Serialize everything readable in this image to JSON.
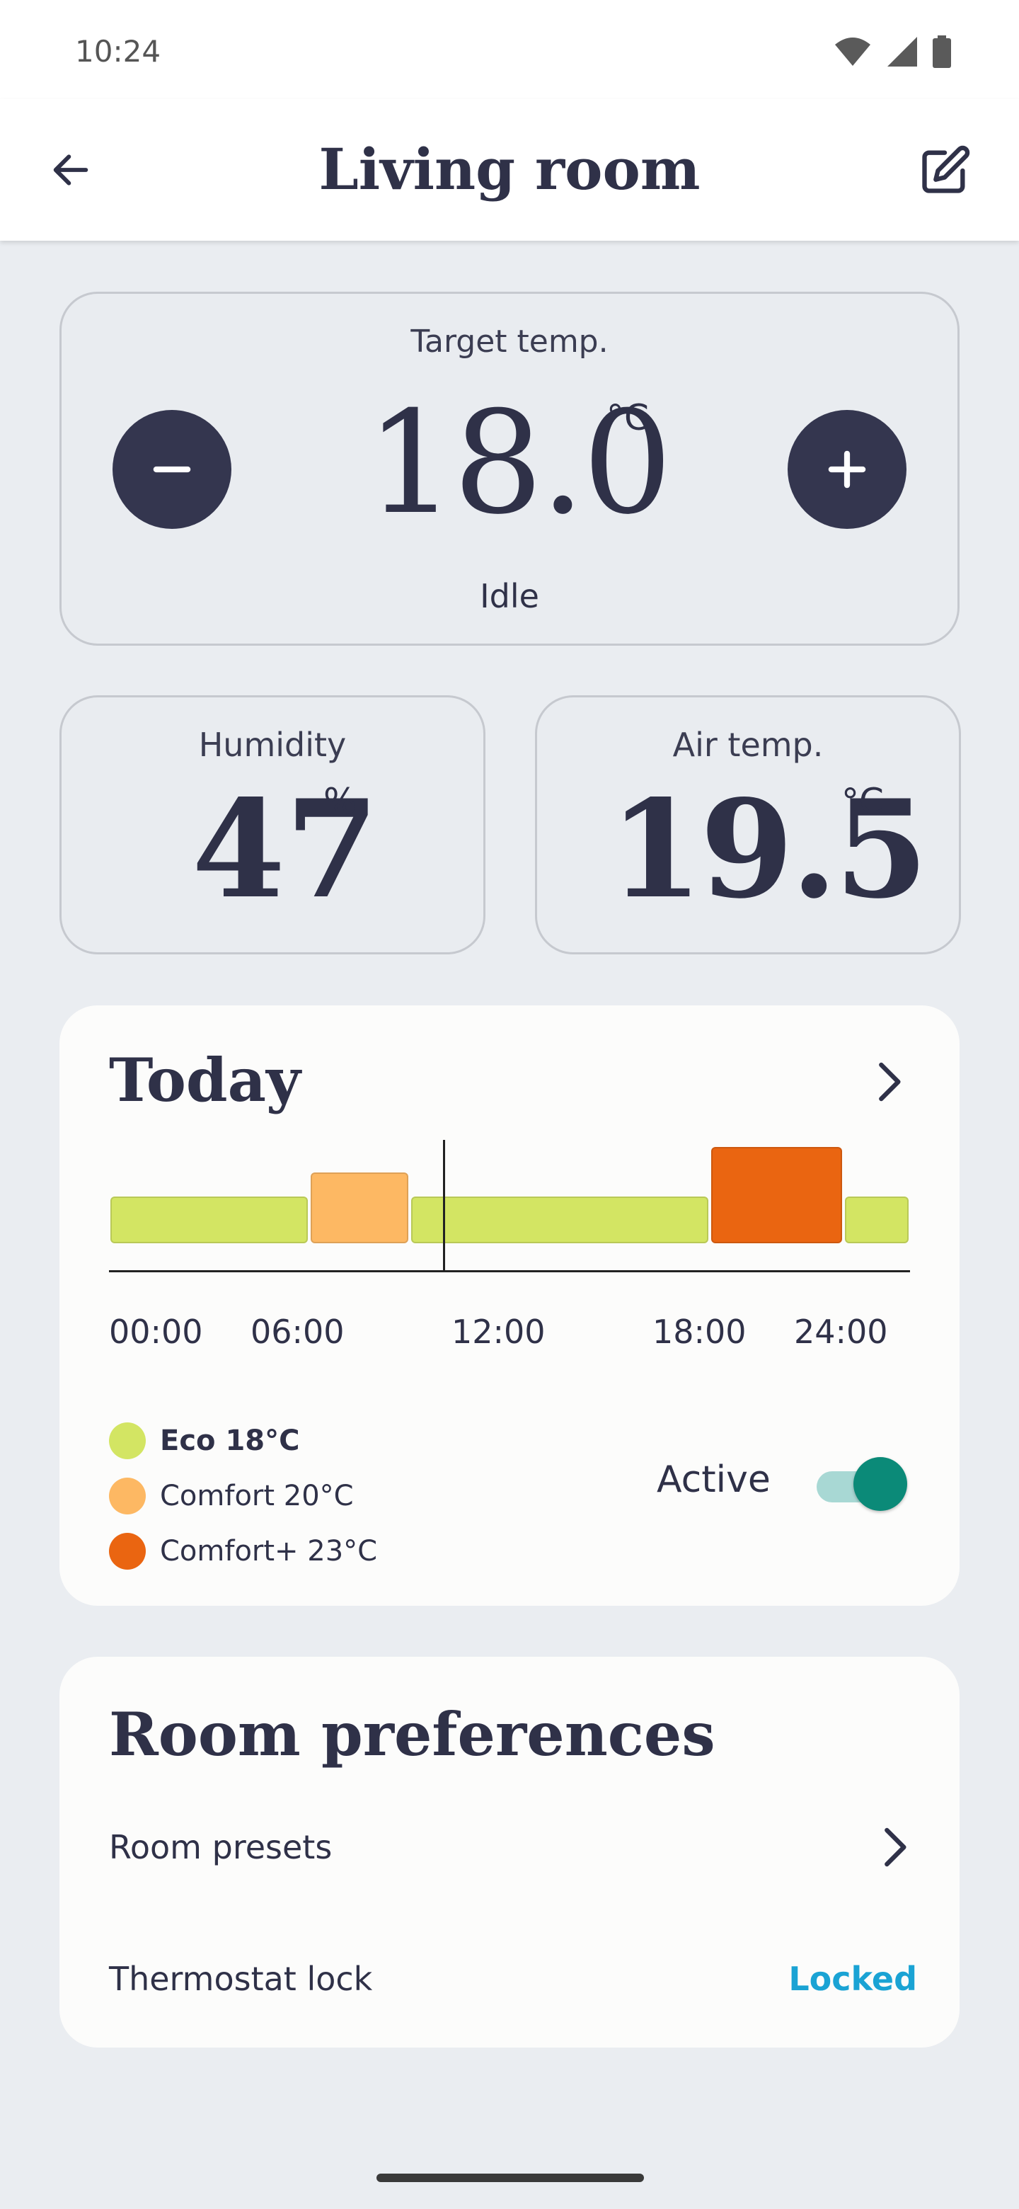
{
  "status_bar": {
    "time": "10:24",
    "icons": [
      "wifi-icon",
      "signal-icon",
      "battery-icon"
    ]
  },
  "header": {
    "title": "Living room",
    "back_icon": "back-arrow-icon",
    "edit_icon": "edit-icon"
  },
  "target": {
    "label": "Target temp.",
    "value": "18.0",
    "unit": "°C",
    "state": "Idle",
    "decrease_icon": "minus-icon",
    "increase_icon": "plus-icon"
  },
  "humidity": {
    "label": "Humidity",
    "value": "47",
    "unit": "%"
  },
  "air_temp": {
    "label": "Air temp.",
    "value": "19.5",
    "unit": "°C"
  },
  "today": {
    "title": "Today",
    "ticks": [
      "00:00",
      "06:00",
      "12:00",
      "18:00",
      "24:00"
    ],
    "current_time_marker": "10:00",
    "schedule": [
      {
        "mode": "eco",
        "start": 0,
        "end": 6
      },
      {
        "mode": "comfort",
        "start": 6,
        "end": 9
      },
      {
        "mode": "eco",
        "start": 9,
        "end": 18
      },
      {
        "mode": "comfort_plus",
        "start": 18,
        "end": 22
      },
      {
        "mode": "eco",
        "start": 22,
        "end": 24
      }
    ],
    "legend": [
      {
        "key": "eco",
        "label": "Eco 18°C",
        "color": "#d3e563",
        "bold": true
      },
      {
        "key": "comfort",
        "label": "Comfort 20°C",
        "color": "#fdb863",
        "bold": false
      },
      {
        "key": "comfort_plus",
        "label": "Comfort+ 23°C",
        "color": "#ea6511",
        "bold": false
      }
    ],
    "active_label": "Active",
    "active_on": true
  },
  "preferences": {
    "title": "Room preferences",
    "presets_label": "Room presets",
    "lock_label": "Thermostat lock",
    "lock_value": "Locked"
  },
  "colors": {
    "accent": "#1aa3d4",
    "toggle": "#0b8a78",
    "dark": "#34364f"
  }
}
